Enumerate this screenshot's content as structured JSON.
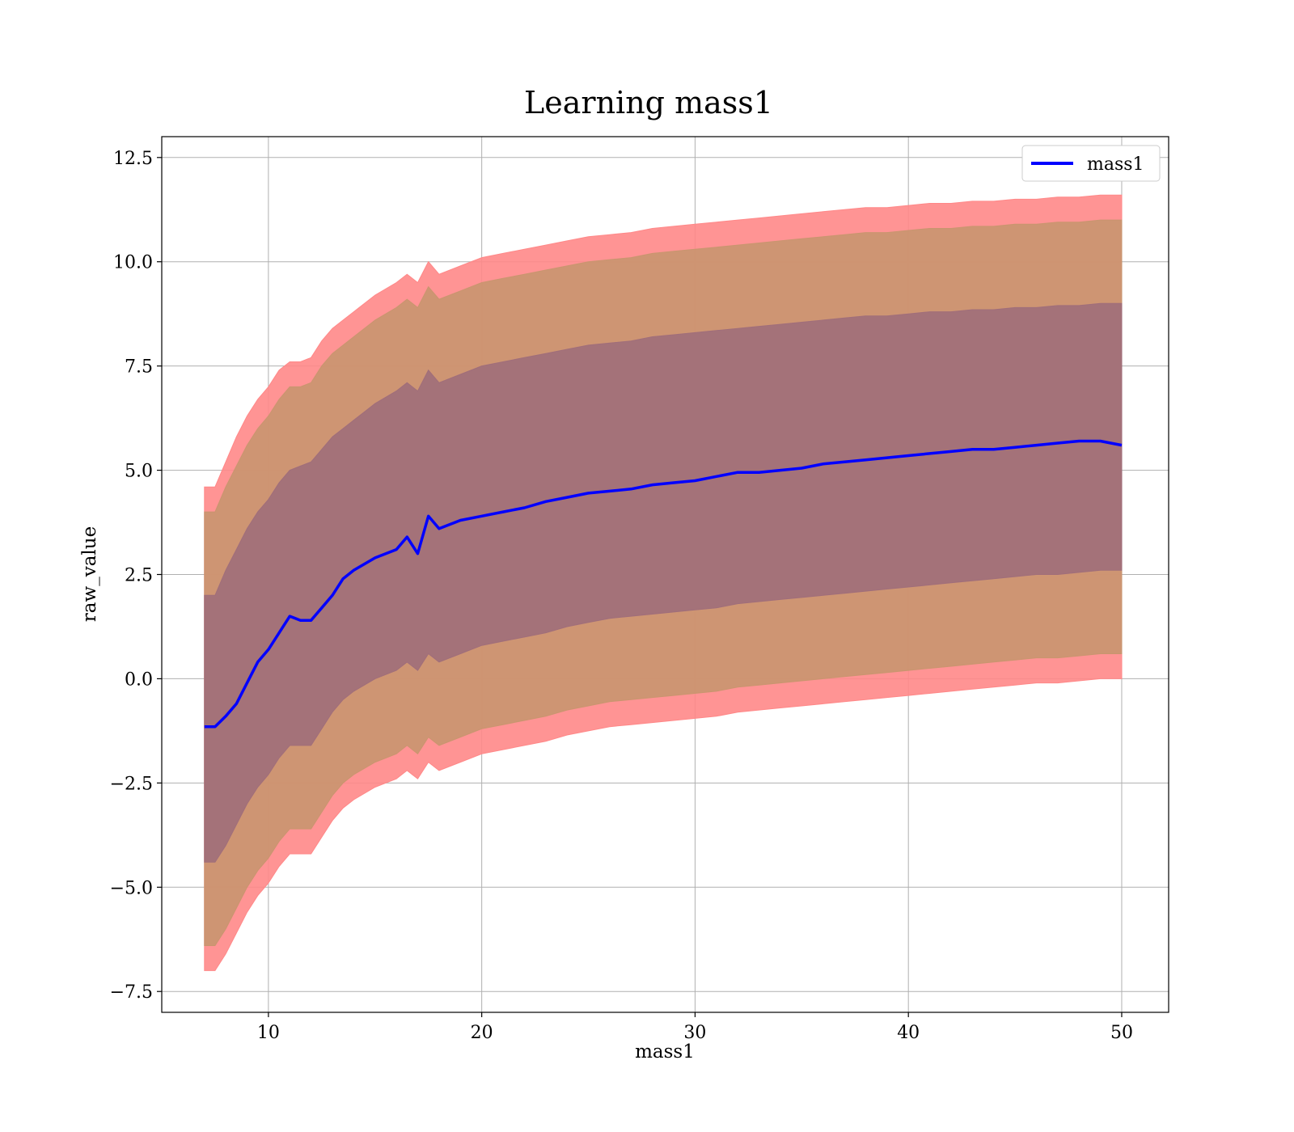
{
  "chart_data": {
    "type": "line",
    "title": "Learning mass1",
    "xlabel": "mass1",
    "ylabel": "raw_value",
    "xlim": [
      5,
      52.2
    ],
    "ylim": [
      -8.0,
      13.0
    ],
    "xticks": [
      10,
      20,
      30,
      40,
      50
    ],
    "xtick_labels": [
      "10",
      "20",
      "30",
      "40",
      "50"
    ],
    "yticks": [
      -7.5,
      -5.0,
      -2.5,
      0.0,
      2.5,
      5.0,
      7.5,
      10.0,
      12.5
    ],
    "ytick_labels": [
      "−7.5",
      "−5.0",
      "−2.5",
      "0.0",
      "2.5",
      "5.0",
      "7.5",
      "10.0",
      "12.5"
    ],
    "grid": true,
    "legend": {
      "position": "top-right",
      "entries": [
        "mass1"
      ]
    },
    "colors": {
      "line": "#0000ff",
      "band_outer": "#ff8888",
      "band_middle": "#c9956f",
      "band_inner": "#a06e7a"
    },
    "series": [
      {
        "name": "mass1",
        "x": [
          7.0,
          7.5,
          8.0,
          8.5,
          9.0,
          9.5,
          10.0,
          10.5,
          11.0,
          11.5,
          12.0,
          12.5,
          13.0,
          13.5,
          14.0,
          15.0,
          16.0,
          16.5,
          17.0,
          17.5,
          18.0,
          19.0,
          20.0,
          21.0,
          22.0,
          23.0,
          24.0,
          25.0,
          26.0,
          27.0,
          28.0,
          29.0,
          30.0,
          31.0,
          32.0,
          33.0,
          34.0,
          35.0,
          36.0,
          37.0,
          38.0,
          39.0,
          40.0,
          41.0,
          42.0,
          43.0,
          44.0,
          45.0,
          46.0,
          47.0,
          48.0,
          49.0,
          50.0
        ],
        "mean": [
          -1.15,
          -1.15,
          -0.9,
          -0.6,
          -0.1,
          0.4,
          0.7,
          1.1,
          1.5,
          1.4,
          1.4,
          1.7,
          2.0,
          2.4,
          2.6,
          2.9,
          3.1,
          3.4,
          3.0,
          3.9,
          3.6,
          3.8,
          3.9,
          4.0,
          4.1,
          4.25,
          4.35,
          4.45,
          4.5,
          4.55,
          4.65,
          4.7,
          4.75,
          4.85,
          4.95,
          4.95,
          5.0,
          5.05,
          5.15,
          5.2,
          5.25,
          5.3,
          5.35,
          5.4,
          5.45,
          5.5,
          5.5,
          5.55,
          5.6,
          5.65,
          5.7,
          5.7,
          5.6
        ],
        "band_inner_upper": [
          2.0,
          2.0,
          2.6,
          3.1,
          3.6,
          4.0,
          4.3,
          4.7,
          5.0,
          5.1,
          5.2,
          5.5,
          5.8,
          6.0,
          6.2,
          6.6,
          6.9,
          7.1,
          6.9,
          7.4,
          7.1,
          7.3,
          7.5,
          7.6,
          7.7,
          7.8,
          7.9,
          8.0,
          8.05,
          8.1,
          8.2,
          8.25,
          8.3,
          8.35,
          8.4,
          8.45,
          8.5,
          8.55,
          8.6,
          8.65,
          8.7,
          8.7,
          8.75,
          8.8,
          8.8,
          8.85,
          8.85,
          8.9,
          8.9,
          8.95,
          8.95,
          9.0,
          9.0
        ],
        "band_inner_lower": [
          -4.4,
          -4.4,
          -4.0,
          -3.5,
          -3.0,
          -2.6,
          -2.3,
          -1.9,
          -1.6,
          -1.6,
          -1.6,
          -1.2,
          -0.8,
          -0.5,
          -0.3,
          0.0,
          0.2,
          0.4,
          0.2,
          0.6,
          0.4,
          0.6,
          0.8,
          0.9,
          1.0,
          1.1,
          1.25,
          1.35,
          1.45,
          1.5,
          1.55,
          1.6,
          1.65,
          1.7,
          1.8,
          1.85,
          1.9,
          1.95,
          2.0,
          2.05,
          2.1,
          2.15,
          2.2,
          2.25,
          2.3,
          2.35,
          2.4,
          2.45,
          2.5,
          2.5,
          2.55,
          2.6,
          2.6
        ],
        "band_middle_upper": [
          4.0,
          4.0,
          4.6,
          5.1,
          5.6,
          6.0,
          6.3,
          6.7,
          7.0,
          7.0,
          7.1,
          7.5,
          7.8,
          8.0,
          8.2,
          8.6,
          8.9,
          9.1,
          8.9,
          9.4,
          9.1,
          9.3,
          9.5,
          9.6,
          9.7,
          9.8,
          9.9,
          10.0,
          10.05,
          10.1,
          10.2,
          10.25,
          10.3,
          10.35,
          10.4,
          10.45,
          10.5,
          10.55,
          10.6,
          10.65,
          10.7,
          10.7,
          10.75,
          10.8,
          10.8,
          10.85,
          10.85,
          10.9,
          10.9,
          10.95,
          10.95,
          11.0,
          11.0
        ],
        "band_middle_lower": [
          -6.4,
          -6.4,
          -6.0,
          -5.5,
          -5.0,
          -4.6,
          -4.3,
          -3.9,
          -3.6,
          -3.6,
          -3.6,
          -3.2,
          -2.8,
          -2.5,
          -2.3,
          -2.0,
          -1.8,
          -1.6,
          -1.8,
          -1.4,
          -1.6,
          -1.4,
          -1.2,
          -1.1,
          -1.0,
          -0.9,
          -0.75,
          -0.65,
          -0.55,
          -0.5,
          -0.45,
          -0.4,
          -0.35,
          -0.3,
          -0.2,
          -0.15,
          -0.1,
          -0.05,
          0.0,
          0.05,
          0.1,
          0.15,
          0.2,
          0.25,
          0.3,
          0.35,
          0.4,
          0.45,
          0.5,
          0.5,
          0.55,
          0.6,
          0.6
        ],
        "band_outer_upper": [
          4.6,
          4.6,
          5.2,
          5.8,
          6.3,
          6.7,
          7.0,
          7.4,
          7.6,
          7.6,
          7.7,
          8.1,
          8.4,
          8.6,
          8.8,
          9.2,
          9.5,
          9.7,
          9.5,
          10.0,
          9.7,
          9.9,
          10.1,
          10.2,
          10.3,
          10.4,
          10.5,
          10.6,
          10.65,
          10.7,
          10.8,
          10.85,
          10.9,
          10.95,
          11.0,
          11.05,
          11.1,
          11.15,
          11.2,
          11.25,
          11.3,
          11.3,
          11.35,
          11.4,
          11.4,
          11.45,
          11.45,
          11.5,
          11.5,
          11.55,
          11.55,
          11.6,
          11.6
        ],
        "band_outer_lower": [
          -7.0,
          -7.0,
          -6.6,
          -6.1,
          -5.6,
          -5.2,
          -4.9,
          -4.5,
          -4.2,
          -4.2,
          -4.2,
          -3.8,
          -3.4,
          -3.1,
          -2.9,
          -2.6,
          -2.4,
          -2.2,
          -2.4,
          -2.0,
          -2.2,
          -2.0,
          -1.8,
          -1.7,
          -1.6,
          -1.5,
          -1.35,
          -1.25,
          -1.15,
          -1.1,
          -1.05,
          -1.0,
          -0.95,
          -0.9,
          -0.8,
          -0.75,
          -0.7,
          -0.65,
          -0.6,
          -0.55,
          -0.5,
          -0.45,
          -0.4,
          -0.35,
          -0.3,
          -0.25,
          -0.2,
          -0.15,
          -0.1,
          -0.1,
          -0.05,
          0.0,
          0.0
        ]
      }
    ]
  }
}
